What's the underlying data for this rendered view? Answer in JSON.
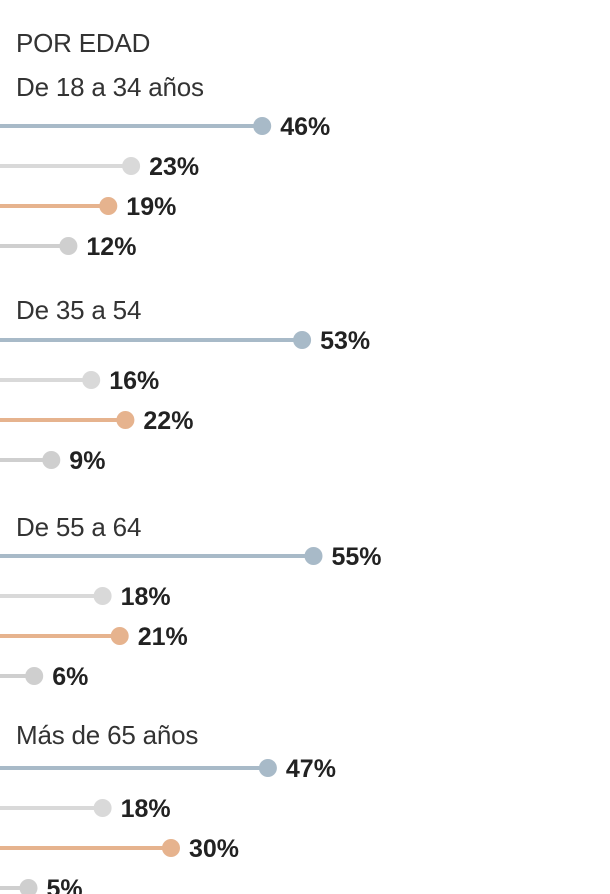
{
  "chart_data": {
    "type": "bar",
    "title": "POR EDAD",
    "colors": [
      "#a8bac8",
      "#d9d9d9",
      "#e6b38e",
      "#cfcfcf"
    ],
    "groups": [
      {
        "name": "De 18 a 34 años",
        "values": [
          46,
          23,
          19,
          12
        ]
      },
      {
        "name": "De 35 a 54",
        "values": [
          53,
          16,
          22,
          9
        ]
      },
      {
        "name": "De 55 a 64",
        "values": [
          55,
          18,
          21,
          6
        ]
      },
      {
        "name": "Más de 65 años",
        "values": [
          47,
          18,
          30,
          5
        ]
      }
    ],
    "value_suffix": "%"
  }
}
